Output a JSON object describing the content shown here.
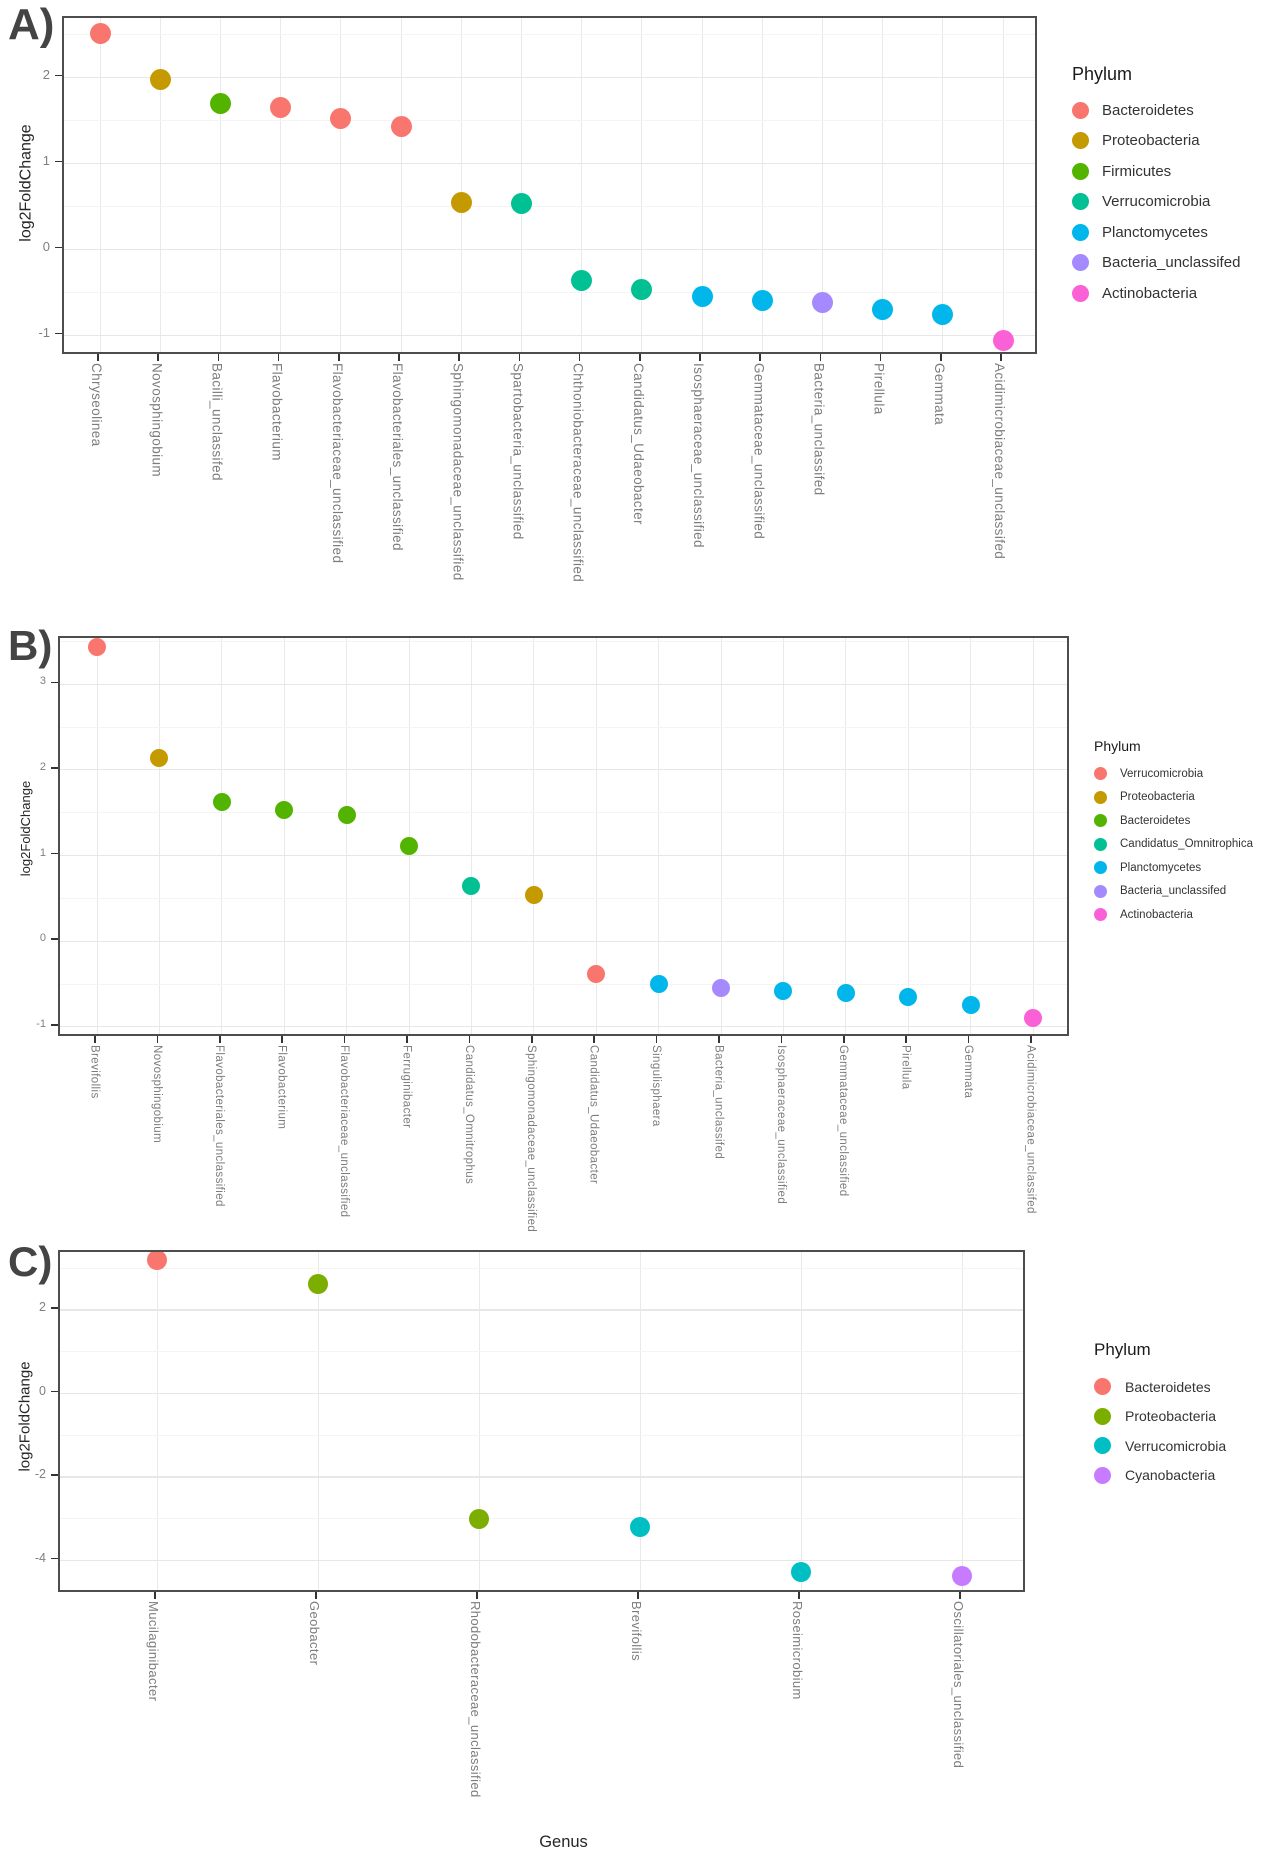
{
  "figure": {
    "xlabel": "Genus",
    "ylabel": "log2FoldChange",
    "legend_title": "Phylum"
  },
  "chart_data": [
    {
      "panel_label": "A)",
      "type": "scatter",
      "ylabel": "log2FoldChange",
      "legend_title": "Phylum",
      "yticks": [
        2,
        1,
        0,
        -1
      ],
      "ylim": [
        -1.24,
        2.69
      ],
      "grid": true,
      "legend_position": "right",
      "legend": [
        {
          "label": "Bacteroidetes",
          "color": "#F8766D"
        },
        {
          "label": "Proteobacteria",
          "color": "#C49A00"
        },
        {
          "label": "Firmicutes",
          "color": "#53B400"
        },
        {
          "label": "Verrucomicrobia",
          "color": "#00C094"
        },
        {
          "label": "Planctomycetes",
          "color": "#00B6EB"
        },
        {
          "label": "Bacteria_unclassifed",
          "color": "#A58AFF"
        },
        {
          "label": "Actinobacteria",
          "color": "#FB61D7"
        }
      ],
      "points": [
        {
          "genus": "Chryseolinea",
          "phylum": "Bacteroidetes",
          "log2FoldChange": 2.51
        },
        {
          "genus": "Novosphingobium",
          "phylum": "Proteobacteria",
          "log2FoldChange": 1.97
        },
        {
          "genus": "Bacilli_unclassifed",
          "phylum": "Firmicutes",
          "log2FoldChange": 1.7
        },
        {
          "genus": "Flavobacterium",
          "phylum": "Bacteroidetes",
          "log2FoldChange": 1.65
        },
        {
          "genus": "Flavobacteriaceae_unclassified",
          "phylum": "Bacteroidetes",
          "log2FoldChange": 1.52
        },
        {
          "genus": "Flavobacteriales_unclassified",
          "phylum": "Bacteroidetes",
          "log2FoldChange": 1.43
        },
        {
          "genus": "Sphingomonadaceae_unclassified",
          "phylum": "Proteobacteria",
          "log2FoldChange": 0.55
        },
        {
          "genus": "Spartobacteria_unclassified",
          "phylum": "Verrucomicrobia",
          "log2FoldChange": 0.53
        },
        {
          "genus": "Chthoniobacteraceae_unclassified",
          "phylum": "Verrucomicrobia",
          "log2FoldChange": -0.36
        },
        {
          "genus": "Candidatus_Udaeobacter",
          "phylum": "Verrucomicrobia",
          "log2FoldChange": -0.47
        },
        {
          "genus": "Isosphaeraceae_unclassified",
          "phylum": "Planctomycetes",
          "log2FoldChange": -0.55
        },
        {
          "genus": "Gemmataceae_unclassified",
          "phylum": "Planctomycetes",
          "log2FoldChange": -0.6
        },
        {
          "genus": "Bacteria_unclassifed",
          "phylum": "Bacteria_unclassifed",
          "log2FoldChange": -0.62
        },
        {
          "genus": "Pirellula",
          "phylum": "Planctomycetes",
          "log2FoldChange": -0.7
        },
        {
          "genus": "Gemmata",
          "phylum": "Planctomycetes",
          "log2FoldChange": -0.76
        },
        {
          "genus": "Acidimicrobiaceae_unclassifed",
          "phylum": "Actinobacteria",
          "log2FoldChange": -1.06
        }
      ]
    },
    {
      "panel_label": "B)",
      "type": "scatter",
      "ylabel": "log2FoldChange",
      "legend_title": "Phylum",
      "yticks": [
        3,
        2,
        1,
        0,
        -1
      ],
      "ylim": [
        -1.13,
        3.54
      ],
      "grid": true,
      "legend_position": "right",
      "legend": [
        {
          "label": "Verrucomicrobia",
          "color": "#F8766D"
        },
        {
          "label": "Proteobacteria",
          "color": "#C49A00"
        },
        {
          "label": "Bacteroidetes",
          "color": "#53B400"
        },
        {
          "label": "Candidatus_Omnitrophica",
          "color": "#00C094"
        },
        {
          "label": "Planctomycetes",
          "color": "#00B6EB"
        },
        {
          "label": "Bacteria_unclassifed",
          "color": "#A58AFF"
        },
        {
          "label": "Actinobacteria",
          "color": "#FB61D7"
        }
      ],
      "points": [
        {
          "genus": "Brevifollis",
          "phylum": "Verrucomicrobia",
          "log2FoldChange": 3.44
        },
        {
          "genus": "Novosphingobium",
          "phylum": "Proteobacteria",
          "log2FoldChange": 2.14
        },
        {
          "genus": "Flavobacteriales_unclassified",
          "phylum": "Bacteroidetes",
          "log2FoldChange": 1.63
        },
        {
          "genus": "Flavobacterium",
          "phylum": "Bacteroidetes",
          "log2FoldChange": 1.53
        },
        {
          "genus": "Flavobacteriaceae_unclassified",
          "phylum": "Bacteroidetes",
          "log2FoldChange": 1.47
        },
        {
          "genus": "Ferruginibacter",
          "phylum": "Bacteroidetes",
          "log2FoldChange": 1.11
        },
        {
          "genus": "Candidatus_Omnitrophus",
          "phylum": "Candidatus_Omnitrophica",
          "log2FoldChange": 0.65
        },
        {
          "genus": "Sphingomonadaceae_unclassified",
          "phylum": "Proteobacteria",
          "log2FoldChange": 0.54
        },
        {
          "genus": "Candidatus_Udaeobacter",
          "phylum": "Verrucomicrobia",
          "log2FoldChange": -0.38
        },
        {
          "genus": "Singulisphaera",
          "phylum": "Planctomycetes",
          "log2FoldChange": -0.5
        },
        {
          "genus": "Bacteria_unclassifed",
          "phylum": "Bacteria_unclassifed",
          "log2FoldChange": -0.55
        },
        {
          "genus": "Isosphaeraceae_unclassified",
          "phylum": "Planctomycetes",
          "log2FoldChange": -0.58
        },
        {
          "genus": "Gemmataceae_unclassified",
          "phylum": "Planctomycetes",
          "log2FoldChange": -0.61
        },
        {
          "genus": "Pirellula",
          "phylum": "Planctomycetes",
          "log2FoldChange": -0.65
        },
        {
          "genus": "Gemmata",
          "phylum": "Planctomycetes",
          "log2FoldChange": -0.74
        },
        {
          "genus": "Acidimicrobiaceae_unclassifed",
          "phylum": "Actinobacteria",
          "log2FoldChange": -0.9
        }
      ]
    },
    {
      "panel_label": "C)",
      "type": "scatter",
      "ylabel": "log2FoldChange",
      "legend_title": "Phylum",
      "yticks": [
        2,
        0,
        -2,
        -4
      ],
      "ylim": [
        -4.8,
        3.39
      ],
      "grid": true,
      "legend_position": "right",
      "legend": [
        {
          "label": "Bacteroidetes",
          "color": "#F8766D"
        },
        {
          "label": "Proteobacteria",
          "color": "#7CAE00"
        },
        {
          "label": "Verrucomicrobia",
          "color": "#00BFC4"
        },
        {
          "label": "Cyanobacteria",
          "color": "#C77CFF"
        }
      ],
      "points": [
        {
          "genus": "Mucilaginibacter",
          "phylum": "Bacteroidetes",
          "log2FoldChange": 3.2
        },
        {
          "genus": "Geobacter",
          "phylum": "Proteobacteria",
          "log2FoldChange": 2.62
        },
        {
          "genus": "Rhodobacteraceae_unclassified",
          "phylum": "Proteobacteria",
          "log2FoldChange": -3.0
        },
        {
          "genus": "Brevifollis",
          "phylum": "Verrucomicrobia",
          "log2FoldChange": -3.2
        },
        {
          "genus": "Roseimicrobium",
          "phylum": "Verrucomicrobia",
          "log2FoldChange": -4.27
        },
        {
          "genus": "Oscillatoriales_unclassified",
          "phylum": "Cyanobacteria",
          "log2FoldChange": -4.38
        }
      ]
    }
  ]
}
